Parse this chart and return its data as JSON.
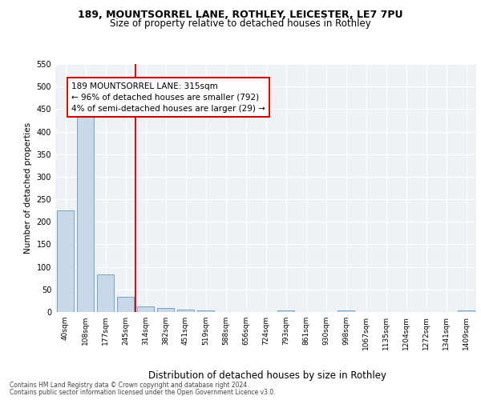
{
  "title1": "189, MOUNTSORREL LANE, ROTHLEY, LEICESTER, LE7 7PU",
  "title2": "Size of property relative to detached houses in Rothley",
  "xlabel": "Distribution of detached houses by size in Rothley",
  "ylabel": "Number of detached properties",
  "categories": [
    "40sqm",
    "108sqm",
    "177sqm",
    "245sqm",
    "314sqm",
    "382sqm",
    "451sqm",
    "519sqm",
    "588sqm",
    "656sqm",
    "724sqm",
    "793sqm",
    "861sqm",
    "930sqm",
    "998sqm",
    "1067sqm",
    "1135sqm",
    "1204sqm",
    "1272sqm",
    "1341sqm",
    "1409sqm"
  ],
  "values": [
    225,
    455,
    83,
    33,
    12,
    8,
    6,
    3,
    0,
    0,
    0,
    3,
    0,
    0,
    3,
    0,
    0,
    0,
    0,
    0,
    3
  ],
  "bar_color": "#c8d8e8",
  "bar_edge_color": "#6699bb",
  "vline_color": "#cc0000",
  "annotation_text": "189 MOUNTSORREL LANE: 315sqm\n← 96% of detached houses are smaller (792)\n4% of semi-detached houses are larger (29) →",
  "annotation_box_color": "#ffffff",
  "annotation_box_edge": "#cc0000",
  "footer1": "Contains HM Land Registry data © Crown copyright and database right 2024.",
  "footer2": "Contains public sector information licensed under the Open Government Licence v3.0.",
  "ylim": [
    0,
    550
  ],
  "yticks": [
    0,
    50,
    100,
    150,
    200,
    250,
    300,
    350,
    400,
    450,
    500,
    550
  ],
  "background_color": "#eef2f7",
  "vline_position": 3.5
}
